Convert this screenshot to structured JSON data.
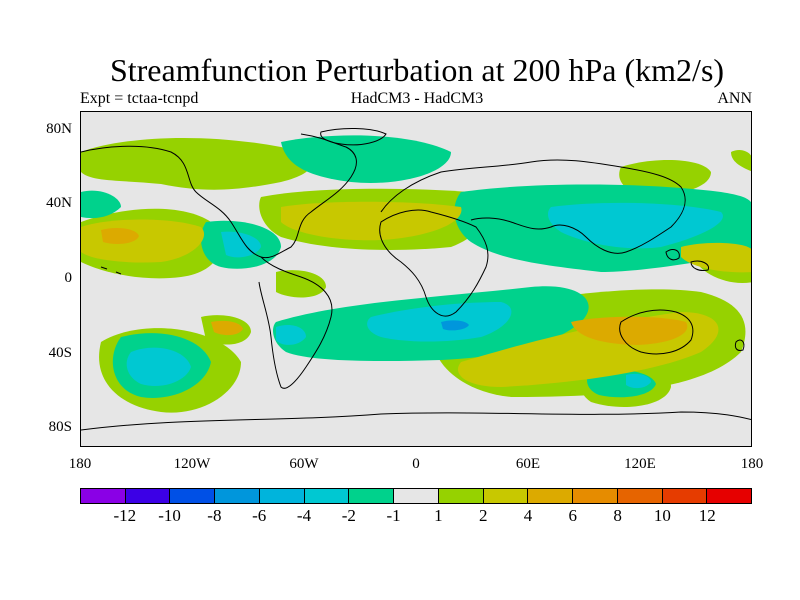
{
  "title": "Streamfunction Perturbation at 200 hPa (km2/s)",
  "left_label": "Expt = tctaa-tcnpd",
  "center_label": "HadCM3 - HadCM3",
  "right_label": "ANN",
  "lat_ticks": [
    "80N",
    "40N",
    "0",
    "40S",
    "80S"
  ],
  "lon_ticks": [
    "180",
    "120W",
    "60W",
    "0",
    "60E",
    "120E",
    "180"
  ],
  "colorbar": {
    "colors": [
      "#8a00e6",
      "#3c00e6",
      "#0050e6",
      "#0096dc",
      "#00b4dc",
      "#00c8d2",
      "#00d28c",
      "#e6e6e6",
      "#96d200",
      "#c8c800",
      "#dcaa00",
      "#e68c00",
      "#e66400",
      "#e63c00",
      "#e60000"
    ],
    "labels": [
      "-12",
      "-10",
      "-8",
      "-6",
      "-4",
      "-2",
      "-1",
      "1",
      "2",
      "4",
      "6",
      "8",
      "10",
      "12"
    ]
  },
  "chart_data": {
    "type": "heatmap",
    "title": "Streamfunction Perturbation at 200 hPa (km2/s)",
    "domain": "global lat-lon",
    "lat_range": [
      -90,
      90
    ],
    "lon_range": [
      -180,
      180
    ],
    "levels": [
      -12,
      -10,
      -8,
      -6,
      -4,
      -2,
      -1,
      1,
      2,
      4,
      6,
      8,
      10,
      12
    ],
    "features": [
      {
        "lon": 135,
        "lat": -31,
        "value": 6
      },
      {
        "lon": 30,
        "lat": -36,
        "value": -4
      },
      {
        "lon": 100,
        "lat": 35,
        "value": -4
      },
      {
        "lon": -40,
        "lat": 38,
        "value": 4
      },
      {
        "lon": -160,
        "lat": 25,
        "value": 4
      },
      {
        "lon": 100,
        "lat": -60,
        "value": -4
      },
      {
        "lon": -55,
        "lat": -35,
        "value": -4
      }
    ]
  }
}
